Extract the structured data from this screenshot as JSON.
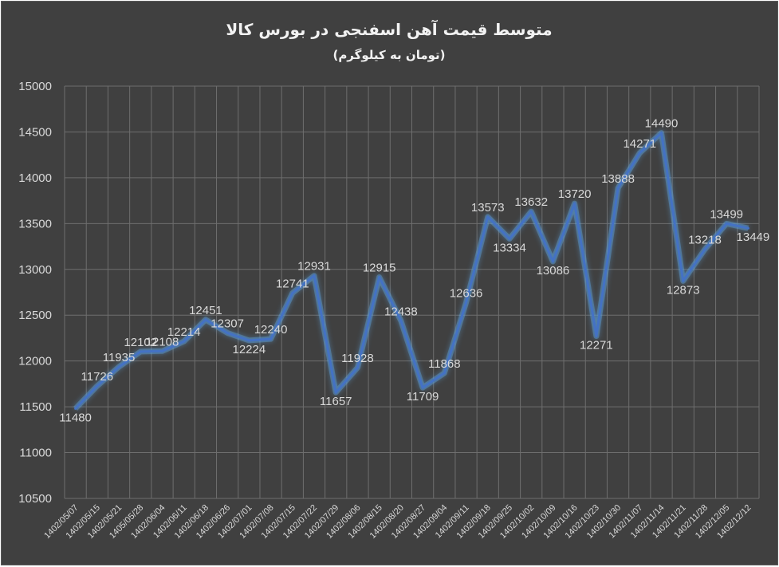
{
  "chart_data": {
    "type": "line",
    "title": "متوسط قیمت آهن اسفنجی در بورس کالا",
    "subtitle": "(تومان به کیلوگرم)",
    "xlabel": "",
    "ylabel": "",
    "ylim": [
      10500,
      15000
    ],
    "ytick_step": 500,
    "yticks": [
      "10500",
      "11000",
      "11500",
      "12000",
      "12500",
      "13000",
      "13500",
      "14000",
      "14500",
      "15000"
    ],
    "grid": true,
    "legend": "none",
    "categories": [
      "1402/05/07",
      "1402/05/15",
      "1402/05/21",
      "1405/05/28",
      "1402/06/04",
      "1402/06/11",
      "1402/06/18",
      "1402/06/26",
      "1402/07/01",
      "1402/07/08",
      "1402/07/15",
      "1402/07/22",
      "1402/07/29",
      "1402/08/06",
      "1402/08/15",
      "1402/08/20",
      "1402/08/27",
      "1402/09/04",
      "1402/09/11",
      "1402/09/18",
      "1402/09/25",
      "1402/10/02",
      "1402/10/09",
      "1402/10/16",
      "1402/10/23",
      "1402/10/30",
      "1402/11/07",
      "1402/11/14",
      "1402/11/21",
      "1402/11/28",
      "1402/12/05",
      "1402/12/12"
    ],
    "series": [
      {
        "values": [
          11480,
          11726,
          11935,
          12102,
          12108,
          12214,
          12451,
          12307,
          12224,
          12240,
          12741,
          12931,
          11657,
          11928,
          12915,
          12438,
          11709,
          11868,
          12636,
          13573,
          13334,
          13632,
          13086,
          13720,
          12271,
          13888,
          14271,
          14490,
          12873,
          13218,
          13499,
          13449
        ]
      }
    ],
    "data_labels": [
      "11480",
      "11726",
      "11935",
      "12102",
      "12108",
      "12214",
      "12451",
      "12307",
      "12224",
      "12240",
      "12741",
      "12931",
      "11657",
      "11928",
      "12915",
      "12438",
      "11709",
      "11868",
      "12636",
      "13573",
      "13334",
      "13632",
      "13086",
      "13720",
      "12271",
      "13888",
      "14271",
      "14490",
      "12873",
      "13218",
      "13499",
      "13449"
    ],
    "colors": {
      "background": "#404040",
      "line": "#4472c4",
      "glow": "#5b9bd5",
      "grid": "#6e6e6e",
      "text": "#d9d9d9",
      "title": "#f2f2f2"
    }
  }
}
